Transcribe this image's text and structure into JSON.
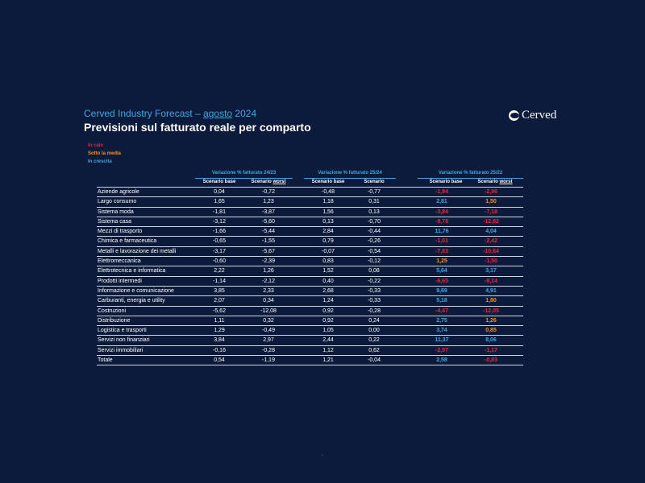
{
  "header": {
    "kicker_prefix": "Cerved Industry Forecast – ",
    "kicker_month": "agosto",
    "kicker_year": " 2024",
    "title": "Previsioni sul fatturato reale per comparto",
    "logo_text": "Cerved"
  },
  "legend": {
    "down": "In calo",
    "below": "Sotto la media",
    "up": "In crescita"
  },
  "columns": {
    "group1": "Variazione % fatturato 24/23",
    "group2": "Variazione % fatturato 25/24",
    "group3": "Variazione % fatturato 25/22",
    "base": "Scenario base",
    "worst_prefix": "Scenario ",
    "worst_word": "worst"
  },
  "rows": [
    {
      "name": "Aziende agricole",
      "v": [
        "0,04",
        "-0,72",
        "-0,48",
        "-0,77",
        "-1,94",
        "-2,96"
      ],
      "s": [
        "red",
        "red"
      ]
    },
    {
      "name": "Largo consumo",
      "v": [
        "1,65",
        "1,23",
        "1,18",
        "0,31",
        "2,81",
        "1,50"
      ],
      "s": [
        "blue",
        "orange"
      ]
    },
    {
      "name": "Sistema moda",
      "v": [
        "-1,81",
        "-3,87",
        "1,56",
        "0,13",
        "-3,84",
        "-7,18"
      ],
      "s": [
        "red",
        "red"
      ]
    },
    {
      "name": "Sistema casa",
      "v": [
        "-3,12",
        "-5,60",
        "0,13",
        "-0,70",
        "-9,78",
        "-12,82"
      ],
      "s": [
        "red",
        "red"
      ]
    },
    {
      "name": "Mezzi di trasporto",
      "v": [
        "-1,66",
        "-5,44",
        "2,84",
        "-0,44",
        "11,76",
        "4,04"
      ],
      "s": [
        "blue",
        "blue"
      ]
    },
    {
      "name": "Chimica e farmaceutica",
      "v": [
        "-0,65",
        "-1,55",
        "0,79",
        "-0,26",
        "-1,01",
        "-2,42"
      ],
      "s": [
        "red",
        "red"
      ]
    },
    {
      "name": "Metalli e lavorazione dei metalli",
      "v": [
        "-3,17",
        "-5,67",
        "-0,07",
        "-0,54",
        "-7,83",
        "-10,64"
      ],
      "s": [
        "red",
        "red"
      ]
    },
    {
      "name": "Elettromeccanica",
      "v": [
        "-0,60",
        "-2,39",
        "0,83",
        "-0,12",
        "1,25",
        "-1,50"
      ],
      "s": [
        "orange",
        "red"
      ]
    },
    {
      "name": "Elettrotecnica e informatica",
      "v": [
        "2,22",
        "1,26",
        "1,52",
        "0,08",
        "5,64",
        "3,17"
      ],
      "s": [
        "blue",
        "blue"
      ]
    },
    {
      "name": "Prodotti intermedi",
      "v": [
        "-1,14",
        "-2,12",
        "0,40",
        "-0,22",
        "-6,65",
        "-8,14"
      ],
      "s": [
        "red",
        "red"
      ]
    },
    {
      "name": "Informazione e comunicazione",
      "v": [
        "3,85",
        "2,33",
        "2,68",
        "-0,33",
        "9,69",
        "4,91"
      ],
      "s": [
        "blue",
        "blue"
      ]
    },
    {
      "name": "Carburanti, energia e utility",
      "v": [
        "2,07",
        "0,34",
        "1,24",
        "-0,33",
        "5,18",
        "1,80"
      ],
      "s": [
        "blue",
        "orange"
      ]
    },
    {
      "name": "Costruzioni",
      "v": [
        "-5,62",
        "-12,08",
        "0,92",
        "-0,28",
        "-4,47",
        "-12,05"
      ],
      "s": [
        "red",
        "red"
      ]
    },
    {
      "name": "Distribuzione",
      "v": [
        "1,11",
        "0,32",
        "0,92",
        "0,24",
        "2,75",
        "1,26"
      ],
      "s": [
        "blue",
        "orange"
      ]
    },
    {
      "name": "Logistica e trasporti",
      "v": [
        "1,29",
        "-0,49",
        "1,05",
        "0,00",
        "3,74",
        "0,85"
      ],
      "s": [
        "blue",
        "orange"
      ]
    },
    {
      "name": "Servizi non finanziari",
      "v": [
        "3,84",
        "2,97",
        "2,44",
        "0,22",
        "11,37",
        "8,06"
      ],
      "s": [
        "blue",
        "blue"
      ]
    },
    {
      "name": "Servizi immobiliari",
      "v": [
        "-0,16",
        "-0,28",
        "1,12",
        "0,62",
        "-2,57",
        "-1,17"
      ],
      "s": [
        "red",
        "red"
      ]
    },
    {
      "name": "Totale",
      "v": [
        "0,54",
        "-1,19",
        "1,21",
        "-0,04",
        "2,58",
        "-0,83"
      ],
      "s": [
        "blue",
        "red"
      ]
    }
  ],
  "footer": {
    "dot": "-"
  },
  "colors": {
    "background": "#0c1b3b",
    "accent": "#41a7e1",
    "down": "#e8283c",
    "below": "#f7931e",
    "up": "#41a7e1"
  }
}
